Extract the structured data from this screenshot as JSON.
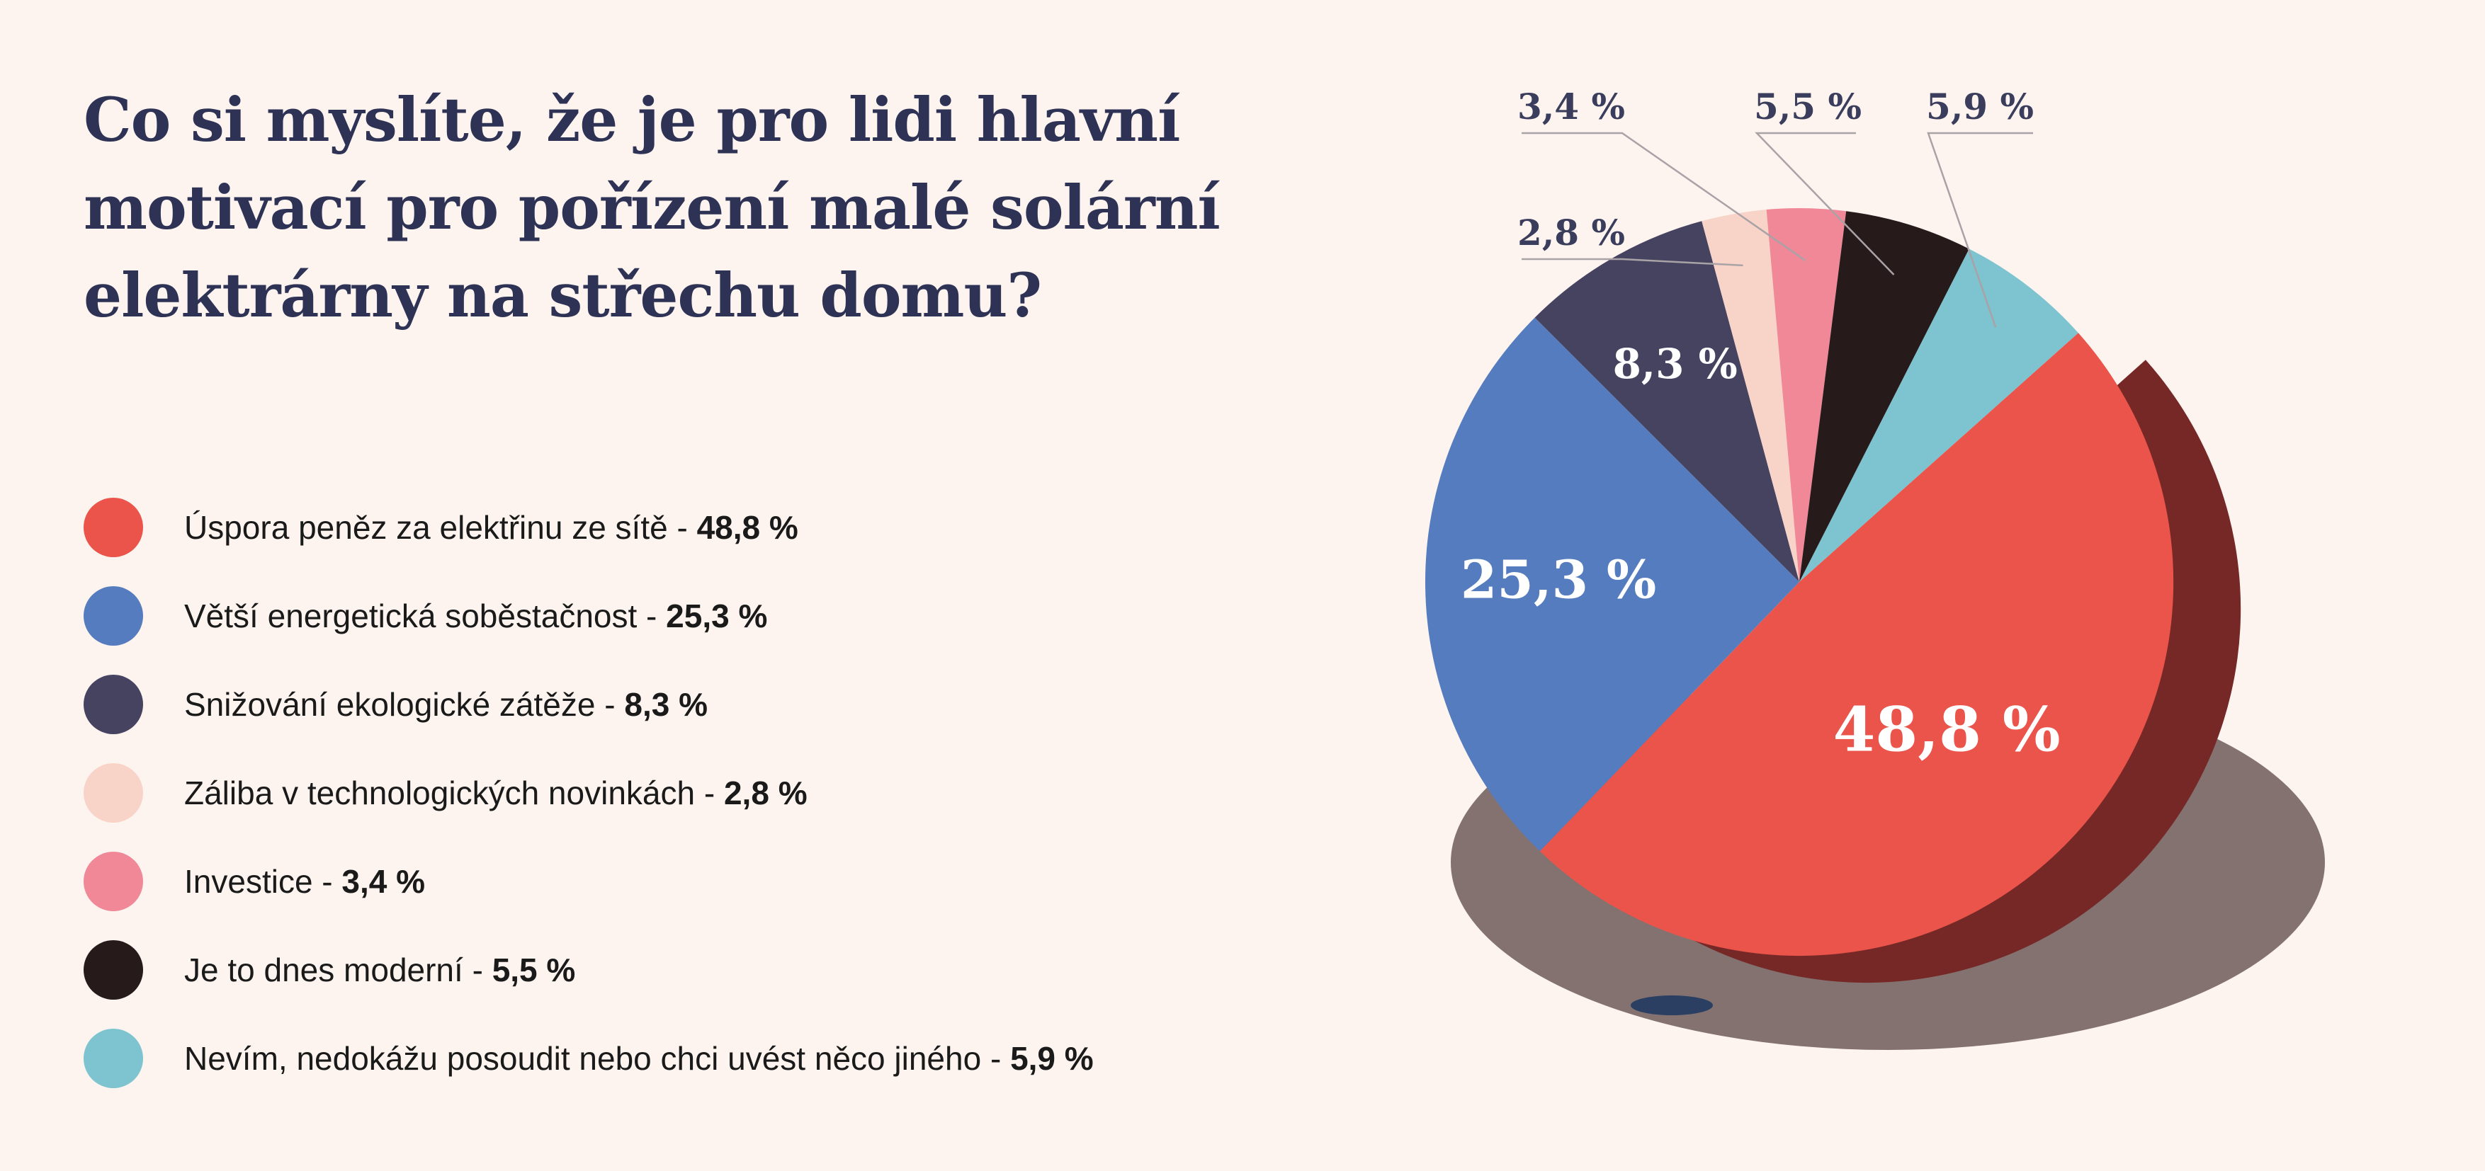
{
  "chart_data": {
    "type": "pie",
    "title": [
      "Co si myslíte, že je pro lidi hlavní",
      "motivací pro pořízení malé solární",
      "elektrárny na střechu domu?"
    ],
    "start_angle_deg": 27,
    "clockwise": true,
    "slices": [
      {
        "name": "Nevím, nedokážu posoudit nebo chci uvést něco jiného",
        "value": 5.9,
        "value_label": "5,9 %",
        "color": "#7dc4d0",
        "label_style": "outside"
      },
      {
        "name": "Úspora peněz za elektřinu ze sítě",
        "value": 48.8,
        "value_label": "48,8 %",
        "color": "#ea544b",
        "label_style": "inside-large"
      },
      {
        "name": "Větší energetická soběstačnost",
        "value": 25.3,
        "value_label": "25,3 %",
        "color": "#557cbe",
        "label_style": "inside"
      },
      {
        "name": "Snižování ekologické zátěže",
        "value": 8.3,
        "value_label": "8,3 %",
        "color": "#454360",
        "label_style": "inside"
      },
      {
        "name": "Záliba v technologických novinkách",
        "value": 2.8,
        "value_label": "2,8 %",
        "color": "#f8d4c8",
        "label_style": "outside"
      },
      {
        "name": "Investice",
        "value": 3.4,
        "value_label": "3,4 %",
        "color": "#f08898",
        "label_style": "outside"
      },
      {
        "name": "Je to dnes moderní",
        "value": 5.5,
        "value_label": "5,5 %",
        "color": "#261a1a",
        "label_style": "outside"
      }
    ],
    "legend": [
      {
        "label": "Úspora peněz za elektřinu ze sítě",
        "value_label": "48,8 %",
        "color": "#ea544b"
      },
      {
        "label": "Větší energetická soběstačnost",
        "value_label": "25,3 %",
        "color": "#557cbe"
      },
      {
        "label": "Snižování ekologické zátěže",
        "value_label": "8,3 %",
        "color": "#454360"
      },
      {
        "label": "Záliba v technologických novinkách",
        "value_label": "2,8 %",
        "color": "#f8d4c8"
      },
      {
        "label": "Investice",
        "value_label": "3,4 %",
        "color": "#f08898"
      },
      {
        "label": "Je to dnes moderní",
        "value_label": "5,5 %",
        "color": "#261a1a"
      },
      {
        "label": "Nevím, nedokážu posoudit nebo chci uvést něco jiného",
        "value_label": "5,9 %",
        "color": "#7dc4d0"
      }
    ],
    "legend_position": "left",
    "exploded_slice_depth_color": "#762826",
    "shadow_color": "#83726f"
  }
}
